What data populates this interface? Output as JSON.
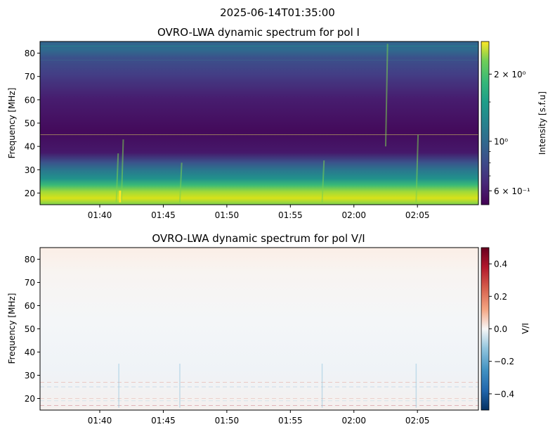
{
  "figure": {
    "suptitle": "2025-06-14T01:35:00"
  },
  "chart_data": [
    {
      "type": "heatmap",
      "title": "OVRO-LWA dynamic spectrum for pol I",
      "ylabel": "Frequency [MHz]",
      "xlabel": "",
      "x_ticks": [
        "01:40",
        "01:45",
        "01:50",
        "01:55",
        "02:00",
        "02:05"
      ],
      "x_tick_minutes": [
        40,
        45,
        50,
        55,
        60,
        65
      ],
      "xlim_minutes": [
        35.3,
        69.8
      ],
      "ylim": [
        15,
        85
      ],
      "y_ticks": [
        20,
        30,
        40,
        50,
        60,
        70,
        80
      ],
      "colormap": "viridis",
      "colorbar": {
        "label": "Intensity [s.f.u]",
        "scale": "log",
        "range": [
          0.52,
          2.8
        ],
        "ticks": [
          "6 × 10⁻¹",
          "10⁰",
          "2 × 10⁰"
        ],
        "tick_values": [
          0.6,
          1.0,
          2.0
        ]
      },
      "grid": false
    },
    {
      "type": "heatmap",
      "title": "OVRO-LWA dynamic spectrum for pol V/I",
      "ylabel": "Frequency [MHz]",
      "xlabel": "",
      "x_ticks": [
        "01:40",
        "01:45",
        "01:50",
        "01:55",
        "02:00",
        "02:05"
      ],
      "x_tick_minutes": [
        40,
        45,
        50,
        55,
        60,
        65
      ],
      "xlim_minutes": [
        35.3,
        69.8
      ],
      "ylim": [
        15,
        85
      ],
      "y_ticks": [
        20,
        30,
        40,
        50,
        60,
        70,
        80
      ],
      "colormap": "RdBu_r",
      "colorbar": {
        "label": "V/I",
        "scale": "linear",
        "range": [
          -0.5,
          0.5
        ],
        "ticks": [
          "0.4",
          "0.2",
          "0.0",
          "−0.2",
          "−0.4"
        ],
        "tick_values": [
          0.4,
          0.2,
          0.0,
          -0.2,
          -0.4
        ]
      },
      "grid": false
    }
  ]
}
